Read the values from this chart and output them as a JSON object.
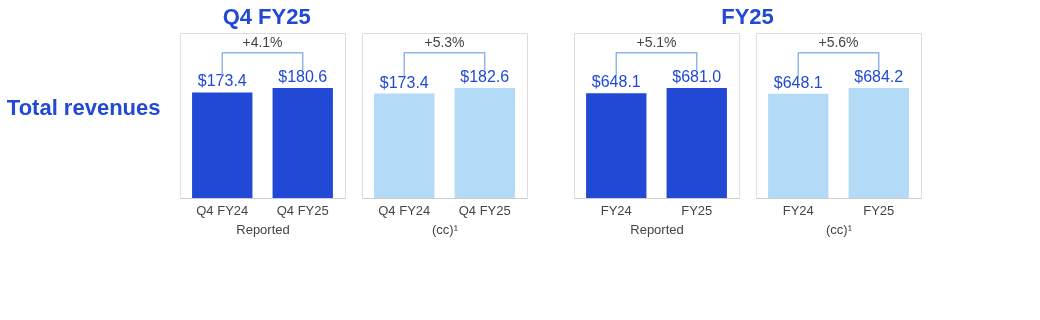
{
  "chart_data": [
    {
      "type": "bar",
      "title": "Q4 FY25",
      "ylabel": "Total revenues",
      "xlabel": "Reported",
      "categories": [
        "Q4 FY24",
        "Q4 FY25"
      ],
      "values": [
        173.4,
        180.6
      ],
      "colors": [
        "#2149d6",
        "#2149d6"
      ],
      "value_labels": [
        "$173.4",
        "$180.6"
      ],
      "annotations": [
        "+4.1%"
      ]
    },
    {
      "type": "bar",
      "xlabel": "(cc)¹",
      "categories": [
        "Q4 FY24",
        "Q4 FY25"
      ],
      "values": [
        173.4,
        182.6
      ],
      "colors": [
        "#b3dbf7",
        "#b3dbf7"
      ],
      "value_labels": [
        "$173.4",
        "$182.6"
      ],
      "annotations": [
        "+5.3%"
      ]
    },
    {
      "type": "bar",
      "title": "FY25",
      "xlabel": "Reported",
      "categories": [
        "FY24",
        "FY25"
      ],
      "values": [
        648.1,
        681.0
      ],
      "colors": [
        "#2149d6",
        "#2149d6"
      ],
      "value_labels": [
        "$648.1",
        "$681.0"
      ],
      "annotations": [
        "+5.1%"
      ]
    },
    {
      "type": "bar",
      "xlabel": "(cc)¹",
      "categories": [
        "FY24",
        "FY25"
      ],
      "values": [
        648.1,
        684.2
      ],
      "colors": [
        "#b3dbf7",
        "#b3dbf7"
      ],
      "value_labels": [
        "$648.1",
        "$684.2"
      ],
      "annotations": [
        "+5.6%"
      ]
    }
  ]
}
